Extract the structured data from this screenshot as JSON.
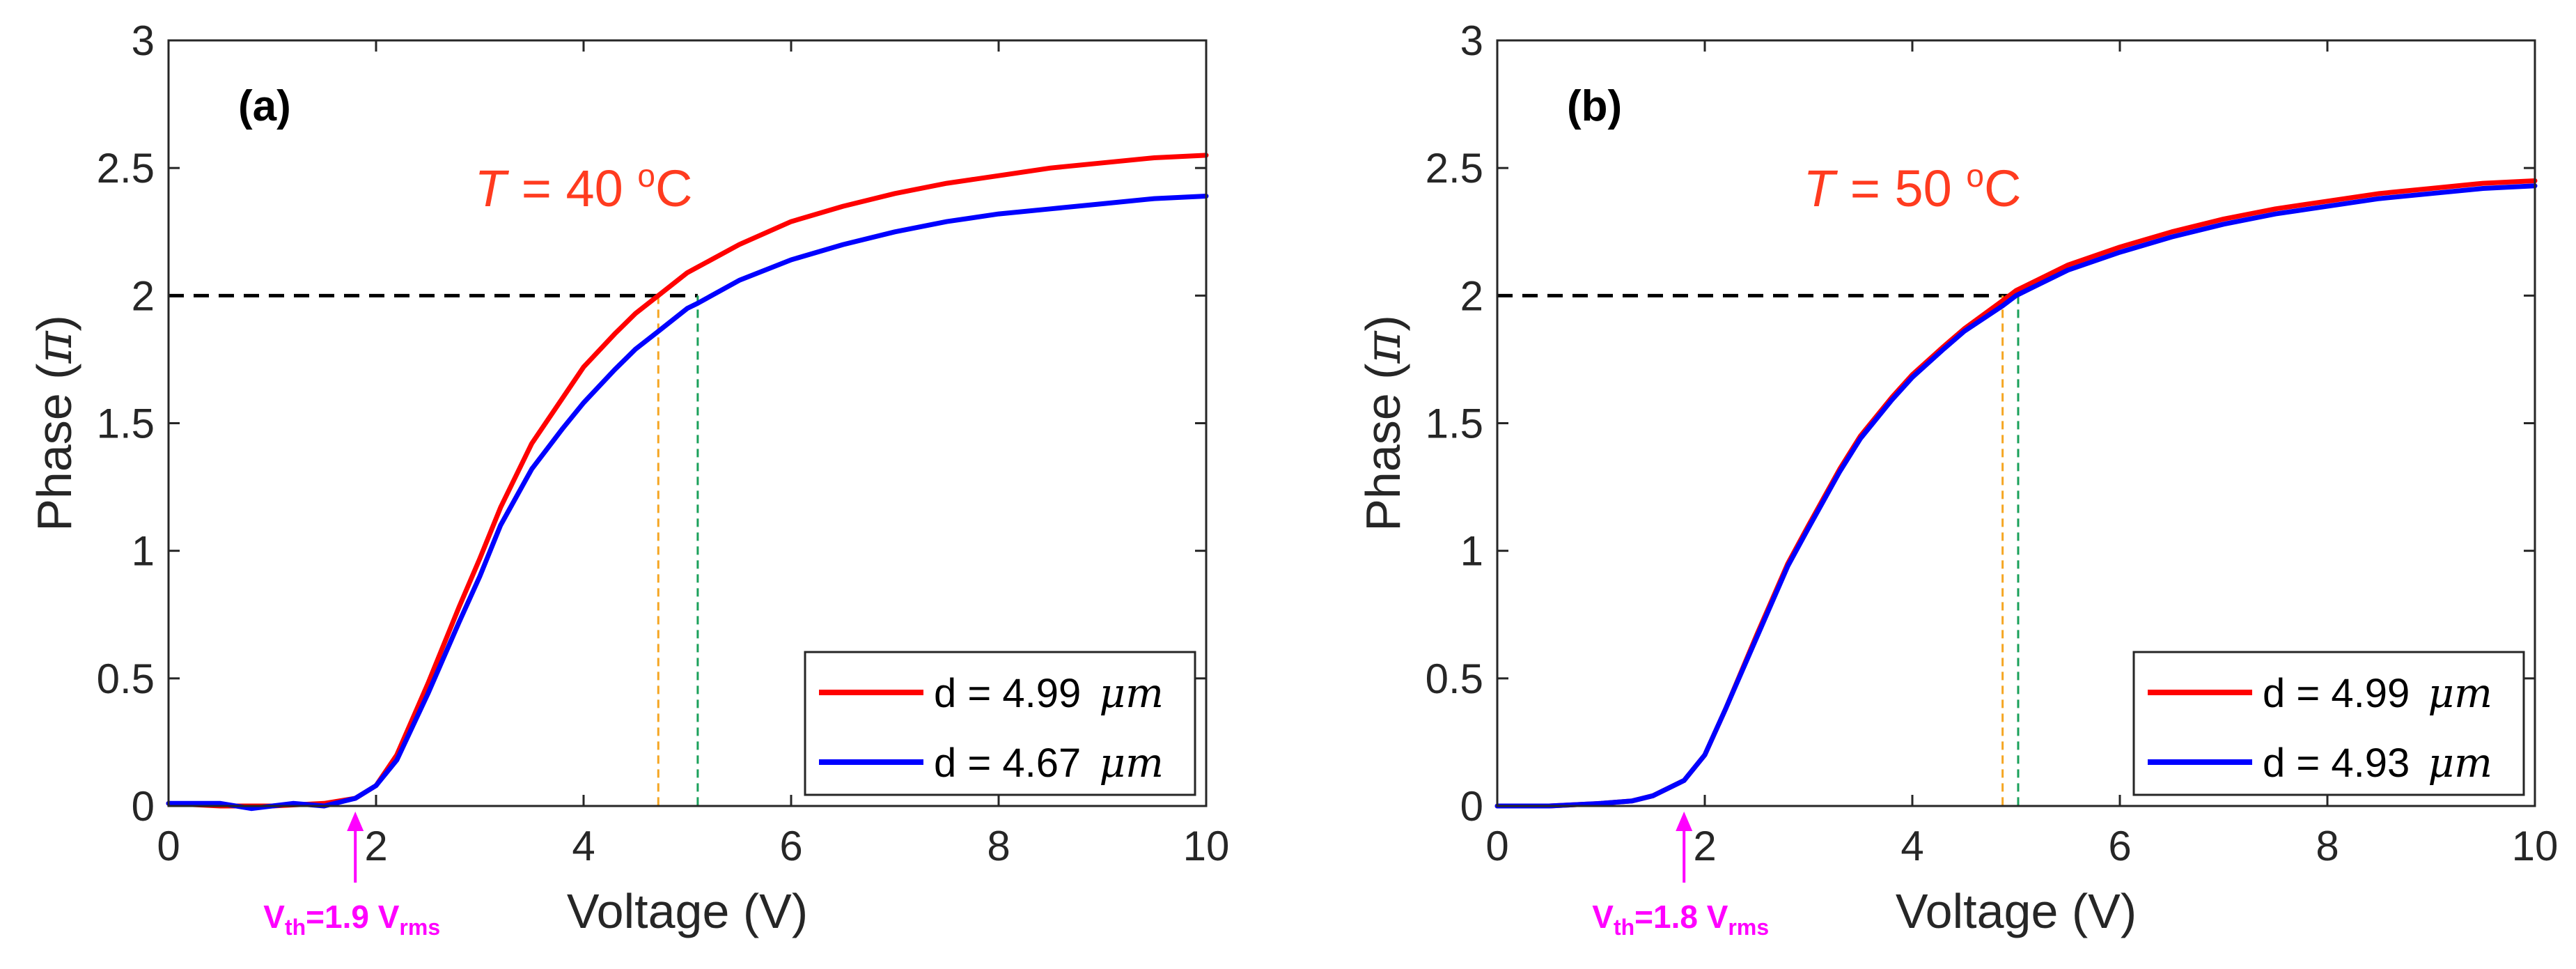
{
  "chart_data": [
    {
      "type": "line",
      "panel_label": "(a)",
      "temperature_label": {
        "var": "T",
        "eq": "= 40 ",
        "deg": "o",
        "unit": "C"
      },
      "xlabel": "Voltage (V)",
      "ylabel_main": "Phase (",
      "ylabel_symbol": "π",
      "ylabel_close": ")",
      "xlim": [
        0,
        10
      ],
      "ylim": [
        0,
        3
      ],
      "x_ticks": [
        0,
        2,
        4,
        6,
        8,
        10
      ],
      "y_ticks": [
        0,
        0.5,
        1,
        1.5,
        2,
        2.5,
        3
      ],
      "x_tick_labels": [
        "0",
        "2",
        "4",
        "6",
        "8",
        "10"
      ],
      "y_tick_labels": [
        "0",
        "0.5",
        "1",
        "1.5",
        "2",
        "2.5",
        "3"
      ],
      "legend_position": "bottom-right",
      "threshold": {
        "x": 1.8,
        "prefix": "V",
        "sub": "th",
        "mid": "=1.9 V",
        "sub2": "rms"
      },
      "reference_line": {
        "y": 2,
        "x_end": 5.1,
        "color": "#000000"
      },
      "markers": [
        {
          "x": 4.72,
          "color": "#f5a623"
        },
        {
          "x": 5.1,
          "color": "#1aa05a"
        }
      ],
      "series": [
        {
          "name": "red",
          "legend_label": "d = 4.99 ",
          "legend_unit": "μm",
          "color": "#ff0000",
          "x": [
            0,
            0.5,
            1.0,
            1.5,
            1.8,
            2.0,
            2.2,
            2.5,
            2.8,
            3.0,
            3.2,
            3.5,
            3.8,
            4.0,
            4.3,
            4.5,
            4.72,
            5.0,
            5.5,
            6.0,
            6.5,
            7.0,
            7.5,
            8.0,
            8.5,
            9.0,
            9.5,
            10.0
          ],
          "y": [
            0.01,
            0.0,
            0.0,
            0.01,
            0.03,
            0.08,
            0.2,
            0.48,
            0.78,
            0.97,
            1.17,
            1.42,
            1.6,
            1.72,
            1.85,
            1.93,
            2.0,
            2.09,
            2.2,
            2.29,
            2.35,
            2.4,
            2.44,
            2.47,
            2.5,
            2.52,
            2.54,
            2.55
          ]
        },
        {
          "name": "blue",
          "legend_label": "d = 4.67 ",
          "legend_unit": "μm",
          "color": "#0000ff",
          "x": [
            0,
            0.5,
            0.8,
            1.0,
            1.2,
            1.5,
            1.8,
            2.0,
            2.2,
            2.5,
            2.8,
            3.0,
            3.2,
            3.5,
            3.8,
            4.0,
            4.3,
            4.5,
            4.72,
            5.0,
            5.1,
            5.5,
            6.0,
            6.5,
            7.0,
            7.5,
            8.0,
            8.5,
            9.0,
            9.5,
            10.0
          ],
          "y": [
            0.01,
            0.01,
            -0.01,
            0.0,
            0.01,
            0.0,
            0.03,
            0.08,
            0.18,
            0.44,
            0.72,
            0.9,
            1.1,
            1.32,
            1.48,
            1.58,
            1.71,
            1.79,
            1.86,
            1.95,
            1.97,
            2.06,
            2.14,
            2.2,
            2.25,
            2.29,
            2.32,
            2.34,
            2.36,
            2.38,
            2.39
          ]
        }
      ]
    },
    {
      "type": "line",
      "panel_label": "(b)",
      "temperature_label": {
        "var": "T",
        "eq": "= 50 ",
        "deg": "o",
        "unit": "C"
      },
      "xlabel": "Voltage (V)",
      "ylabel_main": "Phase (",
      "ylabel_symbol": "π",
      "ylabel_close": ")",
      "xlim": [
        0,
        10
      ],
      "ylim": [
        0,
        3
      ],
      "x_ticks": [
        0,
        2,
        4,
        6,
        8,
        10
      ],
      "y_ticks": [
        0,
        0.5,
        1,
        1.5,
        2,
        2.5,
        3
      ],
      "x_tick_labels": [
        "0",
        "2",
        "4",
        "6",
        "8",
        "10"
      ],
      "y_tick_labels": [
        "0",
        "0.5",
        "1",
        "1.5",
        "2",
        "2.5",
        "3"
      ],
      "legend_position": "bottom-right",
      "threshold": {
        "x": 1.8,
        "prefix": "V",
        "sub": "th",
        "mid": "=1.8 V",
        "sub2": "rms"
      },
      "reference_line": {
        "y": 2,
        "x_end": 5.0,
        "color": "#000000"
      },
      "markers": [
        {
          "x": 4.87,
          "color": "#f5a623"
        },
        {
          "x": 5.02,
          "color": "#1aa05a"
        }
      ],
      "series": [
        {
          "name": "red",
          "legend_label": "d = 4.99 ",
          "legend_unit": "μm",
          "color": "#ff0000",
          "x": [
            0,
            0.5,
            1.0,
            1.3,
            1.5,
            1.7,
            1.8,
            2.0,
            2.2,
            2.5,
            2.8,
            3.0,
            3.3,
            3.5,
            3.8,
            4.0,
            4.3,
            4.5,
            4.87,
            5.0,
            5.5,
            6.0,
            6.5,
            7.0,
            7.5,
            8.0,
            8.5,
            9.0,
            9.5,
            10.0
          ],
          "y": [
            0.0,
            0.0,
            0.01,
            0.02,
            0.04,
            0.08,
            0.1,
            0.2,
            0.38,
            0.67,
            0.95,
            1.1,
            1.32,
            1.45,
            1.6,
            1.69,
            1.8,
            1.87,
            1.98,
            2.02,
            2.12,
            2.19,
            2.25,
            2.3,
            2.34,
            2.37,
            2.4,
            2.42,
            2.44,
            2.45
          ]
        },
        {
          "name": "blue",
          "legend_label": "d = 4.93 ",
          "legend_unit": "μm",
          "color": "#0000ff",
          "x": [
            0,
            0.5,
            1.0,
            1.3,
            1.5,
            1.7,
            1.8,
            2.0,
            2.2,
            2.5,
            2.8,
            3.0,
            3.3,
            3.5,
            3.8,
            4.0,
            4.3,
            4.5,
            4.87,
            5.0,
            5.5,
            6.0,
            6.5,
            7.0,
            7.5,
            8.0,
            8.5,
            9.0,
            9.5,
            10.0
          ],
          "y": [
            0.0,
            0.0,
            0.01,
            0.02,
            0.04,
            0.08,
            0.1,
            0.2,
            0.38,
            0.66,
            0.94,
            1.09,
            1.31,
            1.44,
            1.59,
            1.68,
            1.79,
            1.86,
            1.96,
            2.0,
            2.1,
            2.17,
            2.23,
            2.28,
            2.32,
            2.35,
            2.38,
            2.4,
            2.42,
            2.43
          ]
        }
      ]
    }
  ]
}
